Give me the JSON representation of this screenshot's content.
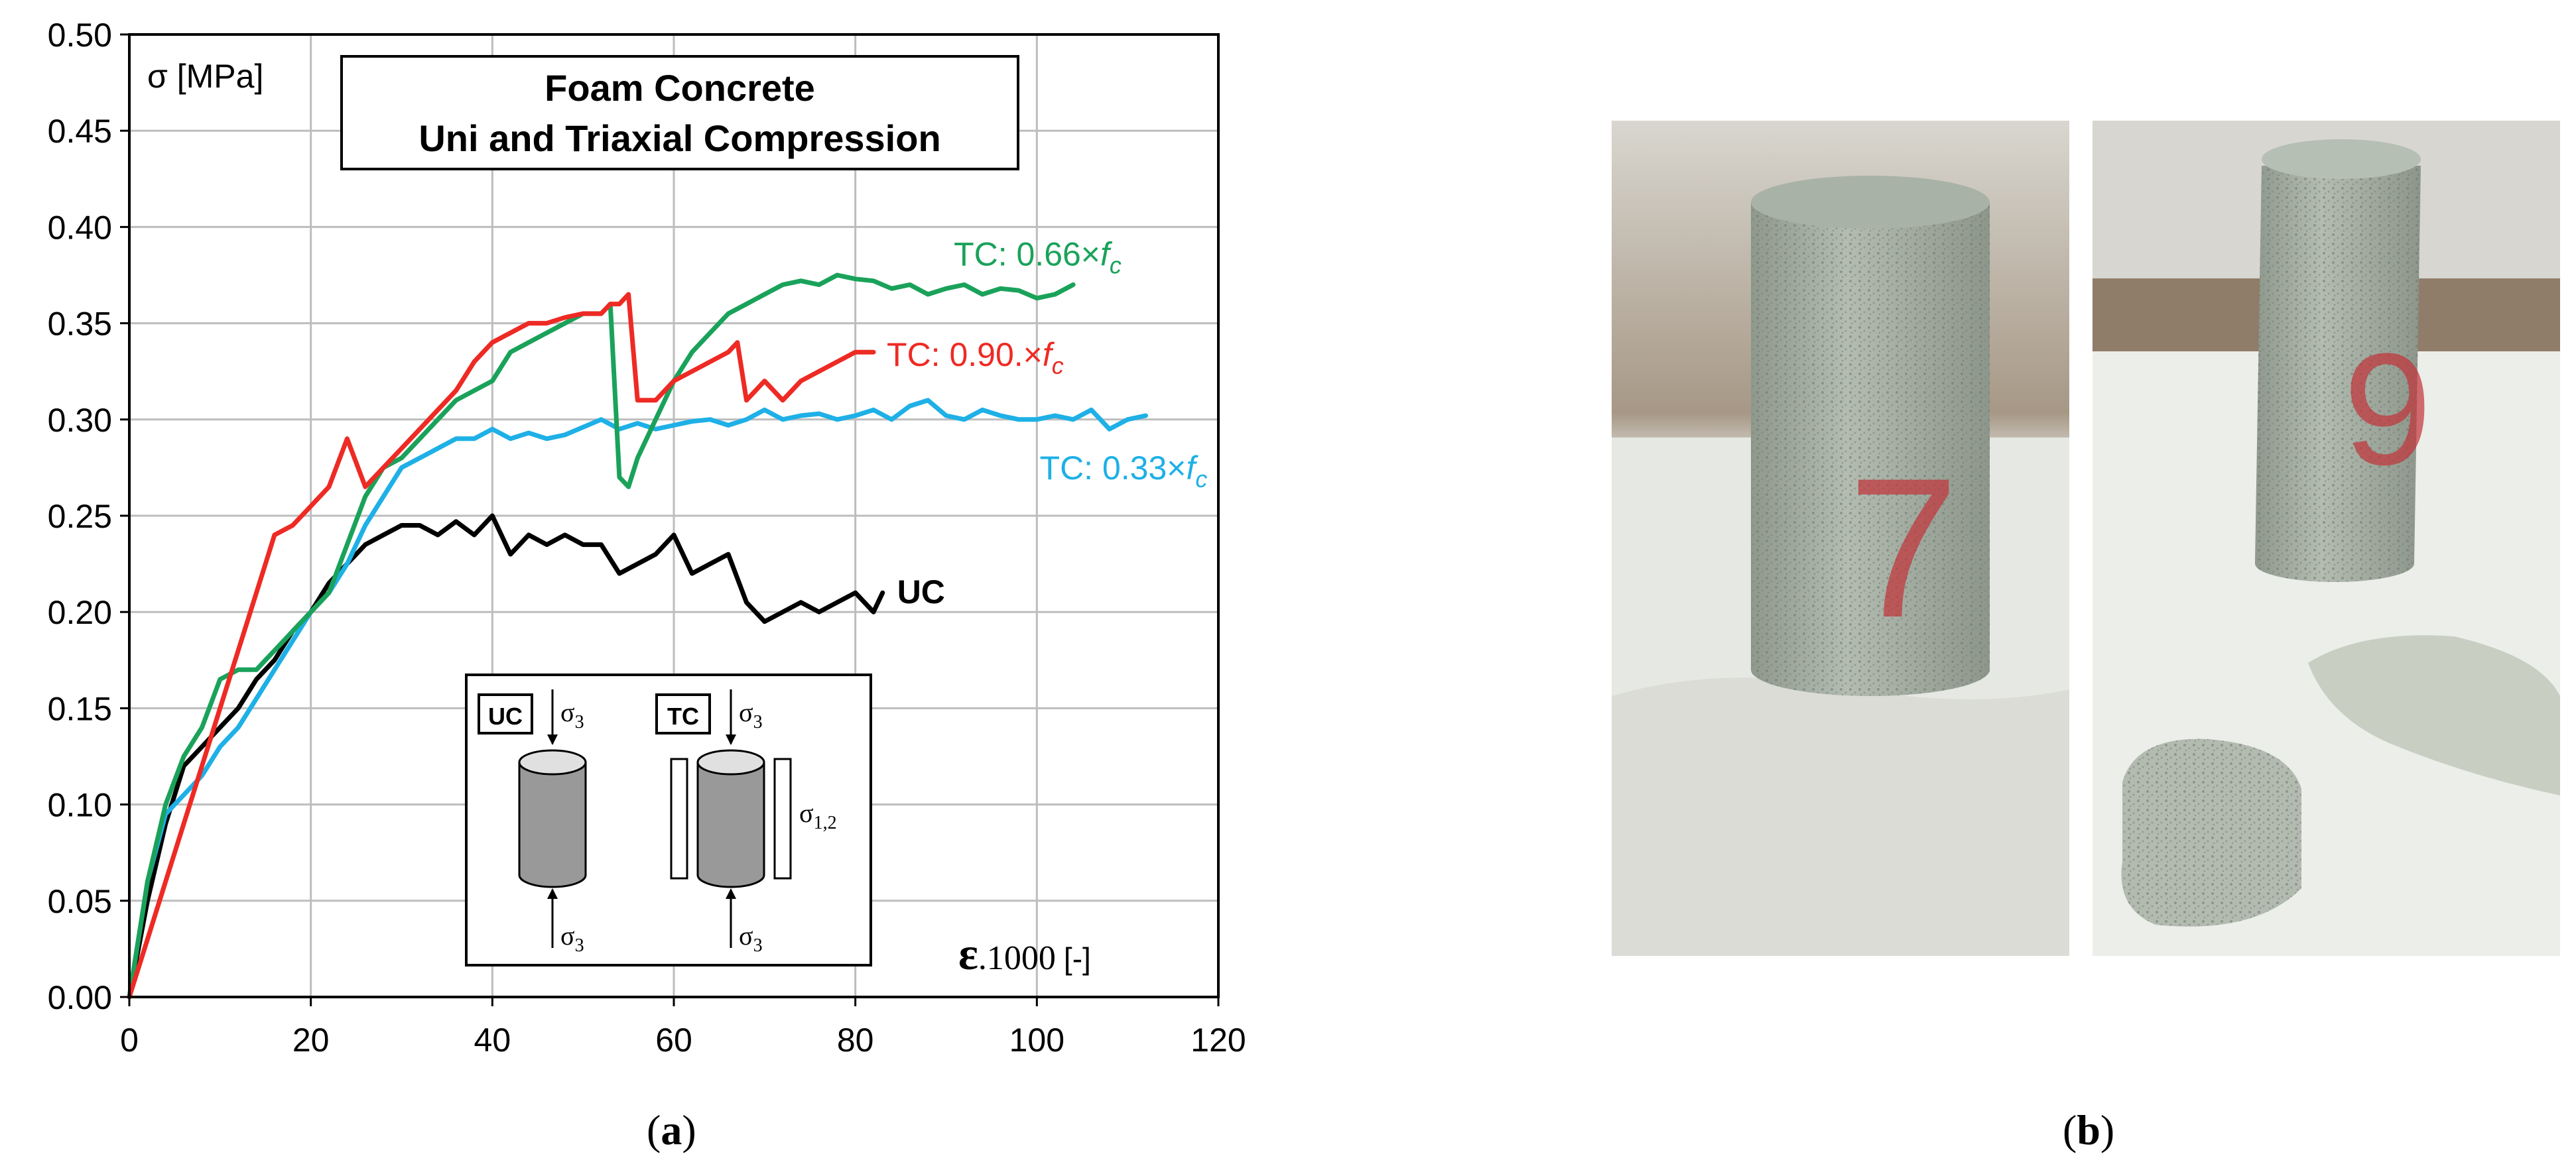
{
  "chart_data": {
    "type": "line",
    "title_line1": "Foam Concrete",
    "title_line2": "Uni and Triaxial Compression",
    "ylabel": "σ [MPa]",
    "xlabel_symbol": "ε",
    "xlabel_factor": ".1000",
    "xlabel_unit": "[-]",
    "xlim": [
      0,
      120
    ],
    "ylim": [
      0,
      0.5
    ],
    "xticks": [
      "0",
      "20",
      "40",
      "60",
      "80",
      "100",
      "120"
    ],
    "yticks": [
      "0.00",
      "0.05",
      "0.10",
      "0.15",
      "0.20",
      "0.25",
      "0.30",
      "0.35",
      "0.40",
      "0.45",
      "0.50"
    ],
    "xtick_values": [
      0,
      20,
      40,
      60,
      80,
      100,
      120
    ],
    "ytick_values": [
      0,
      0.05,
      0.1,
      0.15,
      0.2,
      0.25,
      0.3,
      0.35,
      0.4,
      0.45,
      0.5
    ],
    "grid": true,
    "series": [
      {
        "name": "UC",
        "label": "UC",
        "color": "#000000",
        "x": [
          0,
          2,
          4,
          6,
          8,
          10,
          12,
          14,
          16,
          18,
          20,
          22,
          24,
          26,
          28,
          30,
          32,
          34,
          36,
          38,
          40,
          42,
          44,
          46,
          48,
          50,
          52,
          54,
          56,
          58,
          60,
          62,
          64,
          66,
          68,
          70,
          72,
          74,
          76,
          78,
          80,
          82,
          83
        ],
        "y": [
          0,
          0.05,
          0.09,
          0.12,
          0.13,
          0.14,
          0.15,
          0.165,
          0.175,
          0.19,
          0.2,
          0.215,
          0.225,
          0.235,
          0.24,
          0.245,
          0.245,
          0.24,
          0.247,
          0.24,
          0.25,
          0.23,
          0.24,
          0.235,
          0.24,
          0.235,
          0.235,
          0.22,
          0.225,
          0.23,
          0.24,
          0.22,
          0.225,
          0.23,
          0.205,
          0.195,
          0.2,
          0.205,
          0.2,
          0.205,
          0.21,
          0.2,
          0.21
        ],
        "label_pos": "right"
      },
      {
        "name": "TC 0.33",
        "label": "TC: 0.33×",
        "label_italic": "f",
        "label_sub": "c",
        "color": "#1eb0e6",
        "x": [
          0,
          2,
          4,
          6,
          8,
          10,
          12,
          14,
          16,
          18,
          20,
          22,
          24,
          26,
          28,
          30,
          32,
          34,
          36,
          38,
          40,
          42,
          44,
          46,
          48,
          50,
          52,
          54,
          56,
          58,
          60,
          62,
          64,
          66,
          68,
          70,
          72,
          74,
          76,
          78,
          80,
          82,
          84,
          86,
          88,
          90,
          92,
          94,
          96,
          98,
          100,
          102,
          104,
          106,
          108,
          110,
          112
        ],
        "y": [
          0,
          0.06,
          0.095,
          0.105,
          0.115,
          0.13,
          0.14,
          0.155,
          0.17,
          0.185,
          0.2,
          0.21,
          0.225,
          0.245,
          0.26,
          0.275,
          0.28,
          0.285,
          0.29,
          0.29,
          0.295,
          0.29,
          0.293,
          0.29,
          0.292,
          0.296,
          0.3,
          0.295,
          0.298,
          0.295,
          0.297,
          0.299,
          0.3,
          0.297,
          0.3,
          0.305,
          0.3,
          0.302,
          0.303,
          0.3,
          0.302,
          0.305,
          0.3,
          0.307,
          0.31,
          0.302,
          0.3,
          0.305,
          0.302,
          0.3,
          0.3,
          0.302,
          0.3,
          0.305,
          0.295,
          0.3,
          0.302
        ],
        "label_pos": "right"
      },
      {
        "name": "TC 0.66",
        "label": "TC: 0.66×",
        "label_italic": "f",
        "label_sub": "c",
        "color": "#1aa25a",
        "x": [
          0,
          2,
          4,
          6,
          8,
          10,
          12,
          14,
          16,
          18,
          20,
          22,
          24,
          26,
          28,
          30,
          32,
          34,
          36,
          38,
          40,
          42,
          44,
          46,
          48,
          50,
          52,
          53,
          54,
          55,
          56,
          58,
          60,
          62,
          64,
          66,
          68,
          70,
          72,
          74,
          76,
          78,
          80,
          82,
          84,
          86,
          88,
          90,
          92,
          94,
          96,
          98,
          100,
          102,
          104
        ],
        "y": [
          0,
          0.06,
          0.1,
          0.125,
          0.14,
          0.165,
          0.17,
          0.17,
          0.18,
          0.19,
          0.2,
          0.21,
          0.235,
          0.26,
          0.275,
          0.28,
          0.29,
          0.3,
          0.31,
          0.315,
          0.32,
          0.335,
          0.34,
          0.345,
          0.35,
          0.355,
          0.355,
          0.36,
          0.27,
          0.265,
          0.28,
          0.3,
          0.32,
          0.335,
          0.345,
          0.355,
          0.36,
          0.365,
          0.37,
          0.372,
          0.37,
          0.375,
          0.373,
          0.372,
          0.368,
          0.37,
          0.365,
          0.368,
          0.37,
          0.365,
          0.368,
          0.367,
          0.363,
          0.365,
          0.37
        ],
        "label_pos": "right"
      },
      {
        "name": "TC 0.90",
        "label": "TC: 0.90.×",
        "label_italic": "f",
        "label_sub": "c",
        "color": "#ee2a24",
        "x": [
          0,
          2,
          4,
          6,
          8,
          10,
          12,
          14,
          16,
          18,
          20,
          22,
          24,
          26,
          28,
          30,
          32,
          34,
          36,
          38,
          40,
          42,
          44,
          46,
          48,
          50,
          52,
          53,
          54,
          55,
          56,
          58,
          60,
          62,
          64,
          66,
          67,
          68,
          70,
          72,
          74,
          76,
          78,
          80,
          82
        ],
        "y": [
          0,
          0.03,
          0.06,
          0.09,
          0.12,
          0.15,
          0.18,
          0.21,
          0.24,
          0.245,
          0.255,
          0.265,
          0.29,
          0.265,
          0.275,
          0.285,
          0.295,
          0.305,
          0.315,
          0.33,
          0.34,
          0.345,
          0.35,
          0.35,
          0.353,
          0.355,
          0.355,
          0.36,
          0.36,
          0.365,
          0.31,
          0.31,
          0.32,
          0.325,
          0.33,
          0.335,
          0.34,
          0.31,
          0.32,
          0.31,
          0.32,
          0.325,
          0.33,
          0.335,
          0.335
        ],
        "label_pos": "right"
      }
    ],
    "inset": {
      "uc_label": "UC",
      "tc_label": "TC",
      "sigma3": "σ",
      "sigma3_sub": "3",
      "sigma12": "σ",
      "sigma12_sub": "1,2"
    }
  },
  "captions": {
    "a_open": "(",
    "a_letter": "a",
    "a_close": ")",
    "b_open": "(",
    "b_letter": "b",
    "b_close": ")"
  },
  "photos": {
    "left_number": "7",
    "right_number": "9"
  },
  "colors": {
    "grid": "#bdbdbd",
    "axis": "#000000",
    "specimen": "#a7b0a5",
    "specimen_dark": "#8d968c",
    "table": "#e9ebe7",
    "marker_ink": "#c2333a"
  }
}
